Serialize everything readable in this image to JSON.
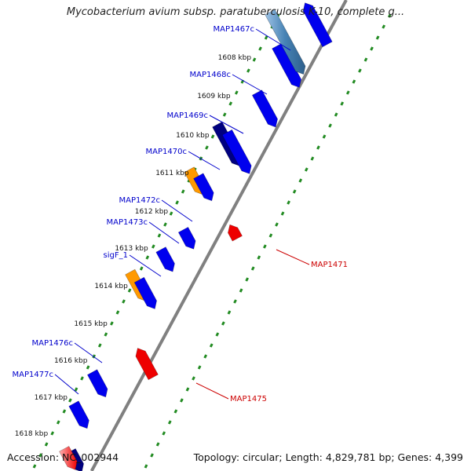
{
  "title": "Mycobacterium avium subsp. paratuberculosis K-10, complete g...",
  "footer": {
    "accession": "Accession: NC_002944",
    "topology": "Topology: circular; Length: 4,829,781 bp; Genes: 4,399"
  },
  "colors": {
    "forward_gene": "#0000ee",
    "reverse_gene": "#ee0000",
    "highlight_gene": "#ff9900",
    "dark_gene": "#000080",
    "steel_gene": "#4682b4",
    "label_blue": "#0000cc",
    "label_red": "#cc0000",
    "dots": "#228b22",
    "backbone": "#808080"
  },
  "kbp_ticks": [
    "1608 kbp",
    "1609 kbp",
    "1610 kbp",
    "1611 kbp",
    "1612 kbp",
    "1613 kbp",
    "1614 kbp",
    "1615 kbp",
    "1616 kbp",
    "1617 kbp",
    "1618 kbp"
  ],
  "gene_labels": [
    {
      "name": "MAP1467c",
      "strand": "reverse"
    },
    {
      "name": "MAP1468c",
      "strand": "reverse"
    },
    {
      "name": "MAP1469c",
      "strand": "reverse"
    },
    {
      "name": "MAP1470c",
      "strand": "reverse"
    },
    {
      "name": "MAP1472c",
      "strand": "reverse"
    },
    {
      "name": "MAP1473c",
      "strand": "reverse"
    },
    {
      "name": "sigF_1",
      "strand": "reverse"
    },
    {
      "name": "MAP1476c",
      "strand": "reverse"
    },
    {
      "name": "MAP1477c",
      "strand": "reverse"
    },
    {
      "name": "MAP1471",
      "strand": "forward"
    },
    {
      "name": "MAP1475",
      "strand": "forward"
    }
  ]
}
